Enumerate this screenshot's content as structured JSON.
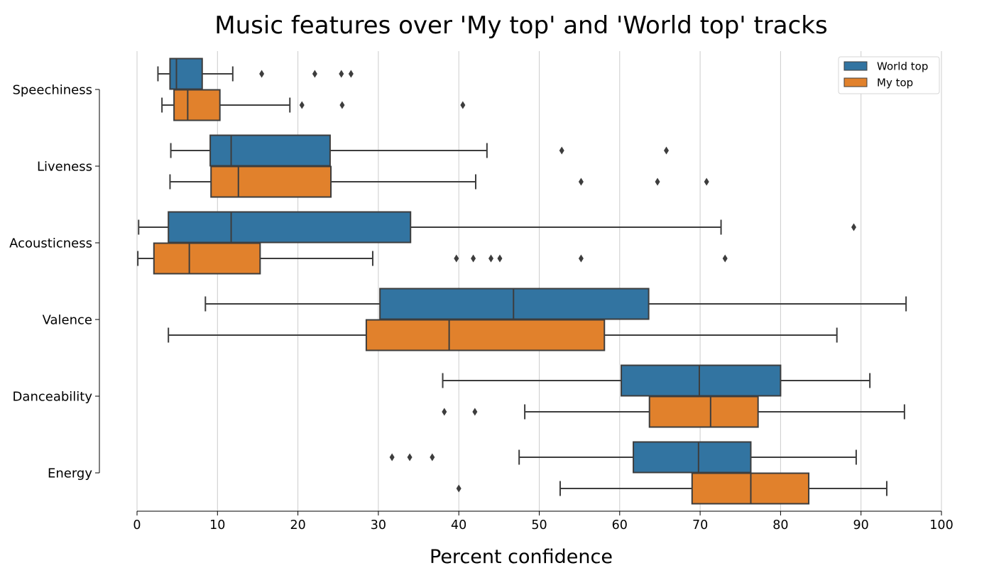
{
  "chart_data": {
    "type": "box",
    "orientation": "horizontal",
    "title": "Music features over 'My top' and 'World top' tracks",
    "xlabel": "Percent confidence",
    "ylabel": "",
    "xlim": [
      0,
      100
    ],
    "xticks": [
      0,
      10,
      20,
      30,
      40,
      50,
      60,
      70,
      80,
      90,
      100
    ],
    "grid": "vertical",
    "legend_position": "top-right",
    "categories": [
      "Speechiness",
      "Liveness",
      "Acousticness",
      "Valence",
      "Danceability",
      "Energy"
    ],
    "series": [
      {
        "name": "World top",
        "color": "#3274a1",
        "boxes": [
          {
            "whislo": 2.6,
            "q1": 4.1,
            "med": 4.9,
            "q3": 8.1,
            "whishi": 11.9,
            "fliers": [
              15.5,
              22.1,
              25.4,
              26.6
            ]
          },
          {
            "whislo": 4.2,
            "q1": 9.1,
            "med": 11.7,
            "q3": 24.0,
            "whishi": 43.5,
            "fliers": [
              52.8,
              65.8
            ]
          },
          {
            "whislo": 0.2,
            "q1": 3.9,
            "med": 11.7,
            "q3": 34.0,
            "whishi": 72.6,
            "fliers": [
              89.1
            ]
          },
          {
            "whislo": 8.5,
            "q1": 30.2,
            "med": 46.8,
            "q3": 63.6,
            "whishi": 95.6,
            "fliers": []
          },
          {
            "whislo": 38.0,
            "q1": 60.2,
            "med": 69.9,
            "q3": 80.0,
            "whishi": 91.1,
            "fliers": []
          },
          {
            "whislo": 47.5,
            "q1": 61.7,
            "med": 69.8,
            "q3": 76.3,
            "whishi": 89.4,
            "fliers": [
              31.7,
              33.9,
              36.7
            ]
          }
        ]
      },
      {
        "name": "My top",
        "color": "#e1812c",
        "boxes": [
          {
            "whislo": 3.1,
            "q1": 4.6,
            "med": 6.3,
            "q3": 10.3,
            "whishi": 19.0,
            "fliers": [
              20.5,
              25.5,
              40.5
            ]
          },
          {
            "whislo": 4.1,
            "q1": 9.2,
            "med": 12.6,
            "q3": 24.1,
            "whishi": 42.1,
            "fliers": [
              55.2,
              64.7,
              70.8
            ]
          },
          {
            "whislo": 0.1,
            "q1": 2.1,
            "med": 6.5,
            "q3": 15.3,
            "whishi": 29.3,
            "fliers": [
              39.7,
              41.8,
              44.0,
              45.1,
              55.2,
              73.1
            ]
          },
          {
            "whislo": 3.9,
            "q1": 28.5,
            "med": 38.8,
            "q3": 58.1,
            "whishi": 87.0,
            "fliers": []
          },
          {
            "whislo": 48.2,
            "q1": 63.7,
            "med": 71.3,
            "q3": 77.2,
            "whishi": 95.4,
            "fliers": [
              38.2,
              42.0
            ]
          },
          {
            "whislo": 52.6,
            "q1": 69.0,
            "med": 76.3,
            "q3": 83.5,
            "whishi": 93.2,
            "fliers": [
              40.0
            ]
          }
        ]
      }
    ]
  }
}
